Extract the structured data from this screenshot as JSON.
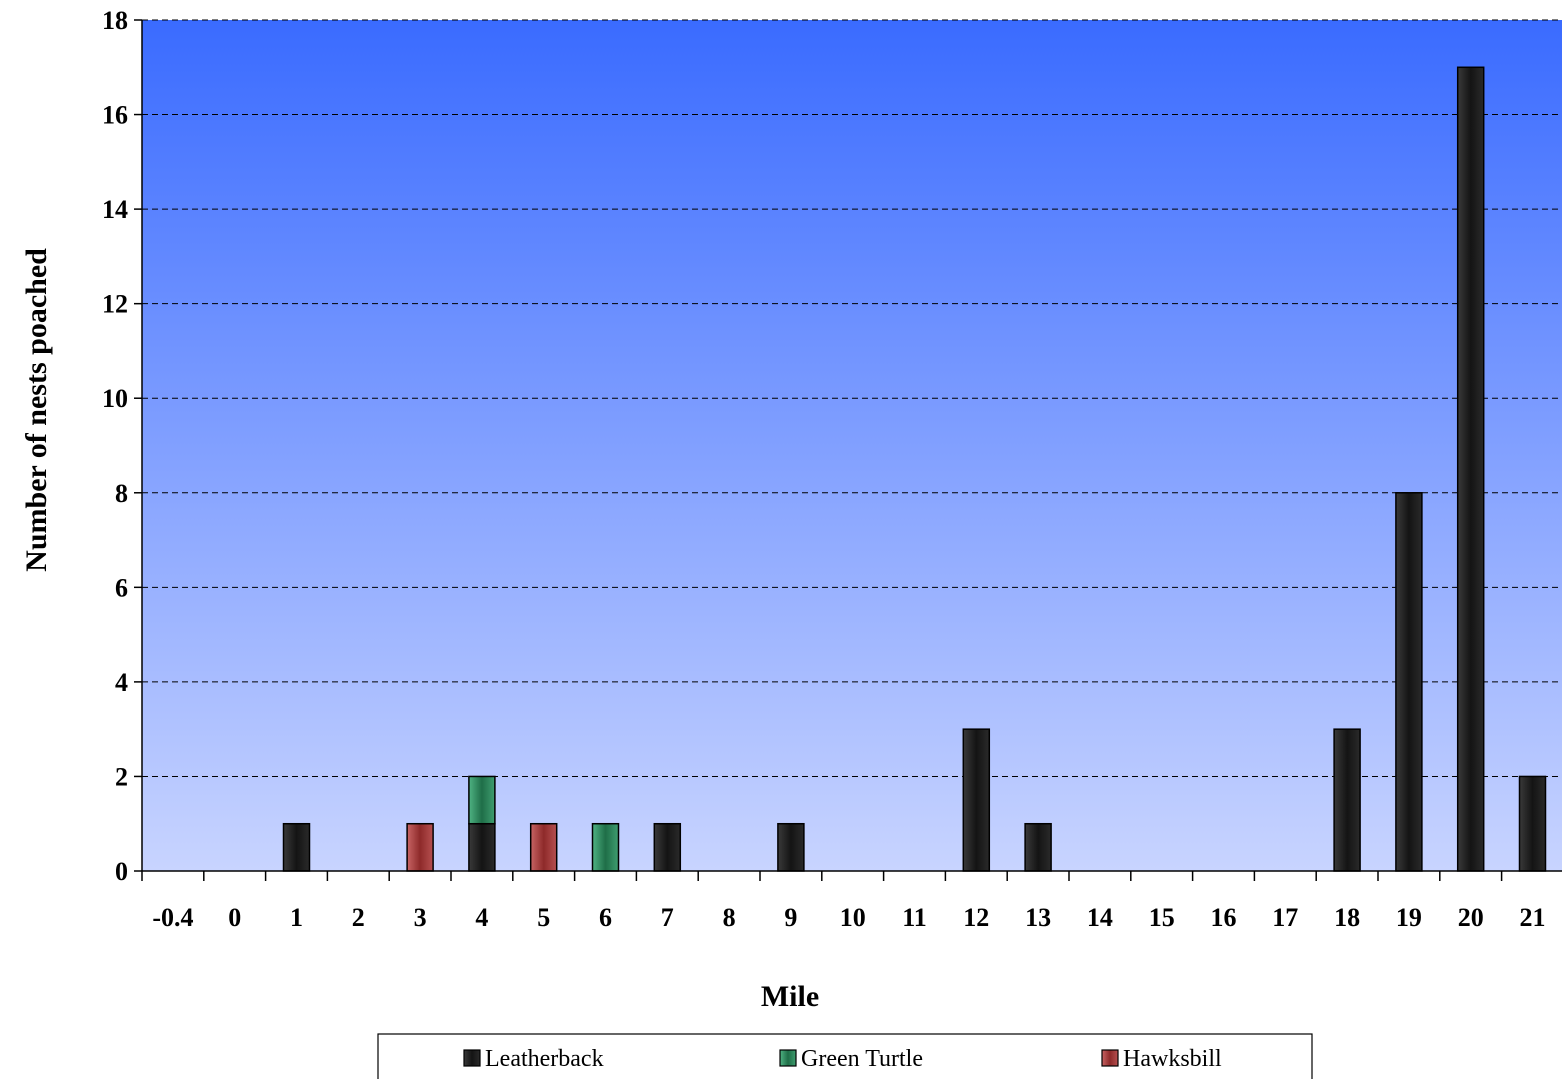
{
  "chart_data": {
    "type": "bar",
    "stacked": true,
    "title": "",
    "xlabel": "Mile",
    "ylabel": "Number of nests poached",
    "ylim": [
      0,
      18
    ],
    "yticks": [
      0,
      2,
      4,
      6,
      8,
      10,
      12,
      14,
      16,
      18
    ],
    "grid": "horizontal-dashed",
    "legend_position": "bottom",
    "categories": [
      "-0.4",
      "0",
      "1",
      "2",
      "3",
      "4",
      "5",
      "6",
      "7",
      "8",
      "9",
      "10",
      "11",
      "12",
      "13",
      "14",
      "15",
      "16",
      "17",
      "18",
      "19",
      "20",
      "21"
    ],
    "series": [
      {
        "name": "Leatherback",
        "color": "#1a1a1a",
        "values": [
          0,
          0,
          1,
          0,
          0,
          1,
          0,
          0,
          1,
          0,
          1,
          0,
          0,
          3,
          1,
          0,
          0,
          0,
          0,
          3,
          8,
          17,
          2
        ]
      },
      {
        "name": "Green Turtle",
        "color": "#2e8b5e",
        "values": [
          0,
          0,
          0,
          0,
          0,
          1,
          0,
          1,
          0,
          0,
          0,
          0,
          0,
          0,
          0,
          0,
          0,
          0,
          0,
          0,
          0,
          0,
          0
        ]
      },
      {
        "name": "Hawksbill",
        "color": "#a33a3a",
        "values": [
          0,
          0,
          0,
          0,
          1,
          0,
          1,
          0,
          0,
          0,
          0,
          0,
          0,
          0,
          0,
          0,
          0,
          0,
          0,
          0,
          0,
          0,
          0
        ]
      }
    ],
    "background_gradient": [
      "#3a6bff",
      "#c8d4ff"
    ]
  }
}
